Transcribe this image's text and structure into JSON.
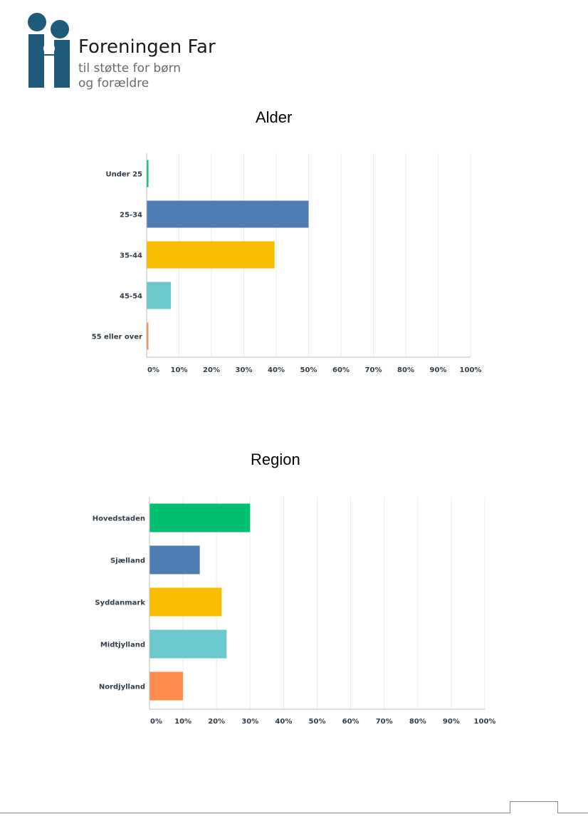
{
  "logo": {
    "name": "Foreningen Far",
    "tagline_line1": "til støtte for børn",
    "tagline_line2": "og forældre",
    "brand_color": "#1f5a7a"
  },
  "chart_data": [
    {
      "type": "bar",
      "orientation": "horizontal",
      "title": "Alder",
      "categories": [
        "Under 25",
        "25-34",
        "35-44",
        "45-54",
        "55 eller over"
      ],
      "values": [
        0.5,
        50,
        39.5,
        7.5,
        0.5
      ],
      "colors": [
        "#00bf6f",
        "#507cb6",
        "#f9be00",
        "#6bc8cd",
        "#ff8b4f"
      ],
      "xlim": [
        0,
        100
      ],
      "x_ticks": [
        "0%",
        "10%",
        "20%",
        "30%",
        "40%",
        "50%",
        "60%",
        "70%",
        "80%",
        "90%",
        "100%"
      ],
      "grid": true
    },
    {
      "type": "bar",
      "orientation": "horizontal",
      "title": "Region",
      "categories": [
        "Hovedstaden",
        "Sjælland",
        "Syddanmark",
        "Midtjylland",
        "Nordjylland"
      ],
      "values": [
        30,
        15,
        21.5,
        23,
        10
      ],
      "colors": [
        "#00bf6f",
        "#507cb6",
        "#f9be00",
        "#6bc8cd",
        "#ff8b4f"
      ],
      "xlim": [
        0,
        100
      ],
      "x_ticks": [
        "0%",
        "10%",
        "20%",
        "30%",
        "40%",
        "50%",
        "60%",
        "70%",
        "80%",
        "90%",
        "100%"
      ],
      "grid": true
    }
  ]
}
